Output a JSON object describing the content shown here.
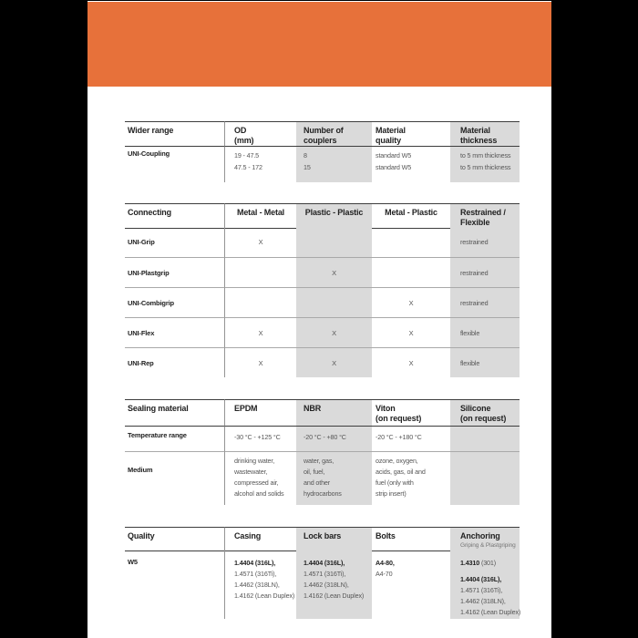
{
  "meta": {
    "accent_color": "#e7713a",
    "gray_cell_color": "#dadada",
    "paper_color": "#ffffff",
    "frame_color": "#000000"
  },
  "tables": [
    {
      "title": "Wider range",
      "headers": [
        {
          "lines": [
            "Wider range"
          ]
        },
        {
          "lines": [
            "OD",
            "(mm)"
          ]
        },
        {
          "lines": [
            "Number of",
            "couplers"
          ]
        },
        {
          "lines": [
            "Material",
            "quality"
          ]
        },
        {
          "lines": [
            "Material",
            "thickness"
          ]
        }
      ],
      "rows": [
        {
          "label": "UNI-Coupling",
          "cells": [
            {
              "lines": [
                "19 - 47.5",
                "47.5 - 172"
              ]
            },
            {
              "lines": [
                "8",
                "15"
              ]
            },
            {
              "lines": [
                "standard W5",
                "standard W5"
              ]
            },
            {
              "lines": [
                "to 5 mm thickness",
                "to 5 mm thickness"
              ]
            }
          ]
        }
      ]
    },
    {
      "title": "Connecting",
      "headers": [
        {
          "lines": [
            "Connecting"
          ]
        },
        {
          "lines": [
            "Metal - Metal"
          ]
        },
        {
          "lines": [
            "Plastic - Plastic"
          ]
        },
        {
          "lines": [
            "Metal - Plastic"
          ]
        },
        {
          "lines": [
            "Restrained /",
            "Flexible"
          ]
        }
      ],
      "rows": [
        {
          "label": "UNI-Grip",
          "cells": [
            {
              "mark": "X"
            },
            {
              "mark": ""
            },
            {
              "mark": ""
            },
            {
              "value": "restrained"
            }
          ]
        },
        {
          "label": "UNI-Plastgrip",
          "cells": [
            {
              "mark": ""
            },
            {
              "mark": "X"
            },
            {
              "mark": ""
            },
            {
              "value": "restrained"
            }
          ]
        },
        {
          "label": "UNI-Combigrip",
          "cells": [
            {
              "mark": ""
            },
            {
              "mark": ""
            },
            {
              "mark": "X"
            },
            {
              "value": "restrained"
            }
          ]
        },
        {
          "label": "UNI-Flex",
          "cells": [
            {
              "mark": "X"
            },
            {
              "mark": "X"
            },
            {
              "mark": "X"
            },
            {
              "value": "flexible"
            }
          ]
        },
        {
          "label": "UNI-Rep",
          "cells": [
            {
              "mark": "X"
            },
            {
              "mark": "X"
            },
            {
              "mark": "X"
            },
            {
              "value": "flexible"
            }
          ]
        }
      ]
    },
    {
      "title": "Sealing material",
      "headers": [
        {
          "lines": [
            "Sealing material"
          ]
        },
        {
          "lines": [
            "EPDM"
          ]
        },
        {
          "lines": [
            "NBR"
          ]
        },
        {
          "lines": [
            "Viton",
            "(on request)"
          ]
        },
        {
          "lines": [
            "Silicone",
            "(on request)"
          ]
        }
      ],
      "rows": [
        {
          "label": "Temperature range",
          "cells": [
            {
              "lines": [
                "-30 °C - +125 °C"
              ]
            },
            {
              "lines": [
                "-20 °C - +80 °C"
              ]
            },
            {
              "lines": [
                "-20 °C - +180 °C"
              ]
            },
            {
              "lines": []
            }
          ]
        },
        {
          "label": "Medium",
          "cells": [
            {
              "lines": [
                "drinking water,",
                "wastewater,",
                "compressed air,",
                "alcohol and solids"
              ]
            },
            {
              "lines": [
                "water, gas,",
                "oil, fuel,",
                "and other",
                "hydrocarbons"
              ]
            },
            {
              "lines": [
                "ozone, oxygen,",
                "acids, gas, oil and",
                "fuel (only with",
                "strip insert)"
              ]
            },
            {
              "lines": []
            }
          ]
        }
      ]
    },
    {
      "title": "Quality",
      "headers": [
        {
          "lines": [
            "Quality"
          ]
        },
        {
          "lines": [
            "Casing"
          ]
        },
        {
          "lines": [
            "Lock bars"
          ]
        },
        {
          "lines": [
            "Bolts"
          ]
        },
        {
          "lines": [
            "Anchoring"
          ],
          "subtitle": "Griping & Plastgriping"
        }
      ],
      "rows": [
        {
          "label": "W5",
          "cells": [
            {
              "bold": "1.4404 (316L),",
              "lines": [
                "1.4571 (316Ti),",
                "1.4462 (318LN),",
                "1.4162 (Lean Duplex)"
              ]
            },
            {
              "bold": "1.4404 (316L),",
              "lines": [
                "1.4571 (316Ti),",
                "1.4462 (318LN),",
                "1.4162 (Lean Duplex)"
              ]
            },
            {
              "bold": "A4-80,",
              "lines": [
                "A4-70"
              ]
            },
            {
              "bold": "1.4310",
              "normal": "(301)",
              "bold2": "1.4404 (316L),",
              "lines": [
                "1.4571 (316Ti),",
                "1.4462 (318LN),",
                "1.4162 (Lean Duplex)"
              ]
            }
          ]
        }
      ]
    }
  ]
}
